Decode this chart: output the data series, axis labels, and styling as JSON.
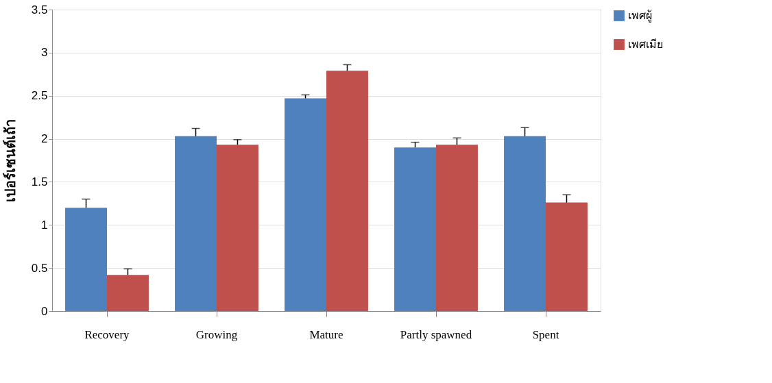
{
  "chart_data": {
    "type": "bar",
    "ylabel": "เปอร์เซนต์เถ้า",
    "categories": [
      "Recovery",
      "Growing",
      "Mature",
      "Partly spawned",
      "Spent"
    ],
    "series": [
      {
        "name": "เพศผู้",
        "color": "#4f81bd",
        "values": [
          1.2,
          2.03,
          2.47,
          1.9,
          2.03
        ],
        "errors": [
          [
            1.2,
            1.3
          ],
          [
            2.03,
            2.12
          ],
          [
            2.47,
            2.51
          ],
          [
            1.9,
            1.96
          ],
          [
            2.03,
            2.13
          ]
        ]
      },
      {
        "name": "เพศเมีย",
        "color": "#c0504d",
        "values": [
          0.42,
          1.93,
          2.79,
          1.93,
          1.26
        ],
        "errors": [
          [
            0.42,
            0.49
          ],
          [
            1.93,
            1.99
          ],
          [
            2.79,
            2.86
          ],
          [
            1.93,
            2.01
          ],
          [
            1.26,
            1.35
          ]
        ]
      }
    ],
    "ylim": [
      0,
      3.5
    ],
    "yticks": [
      0,
      0.5,
      1,
      1.5,
      2,
      2.5,
      3,
      3.5
    ],
    "grid": "y",
    "legend": "right"
  }
}
